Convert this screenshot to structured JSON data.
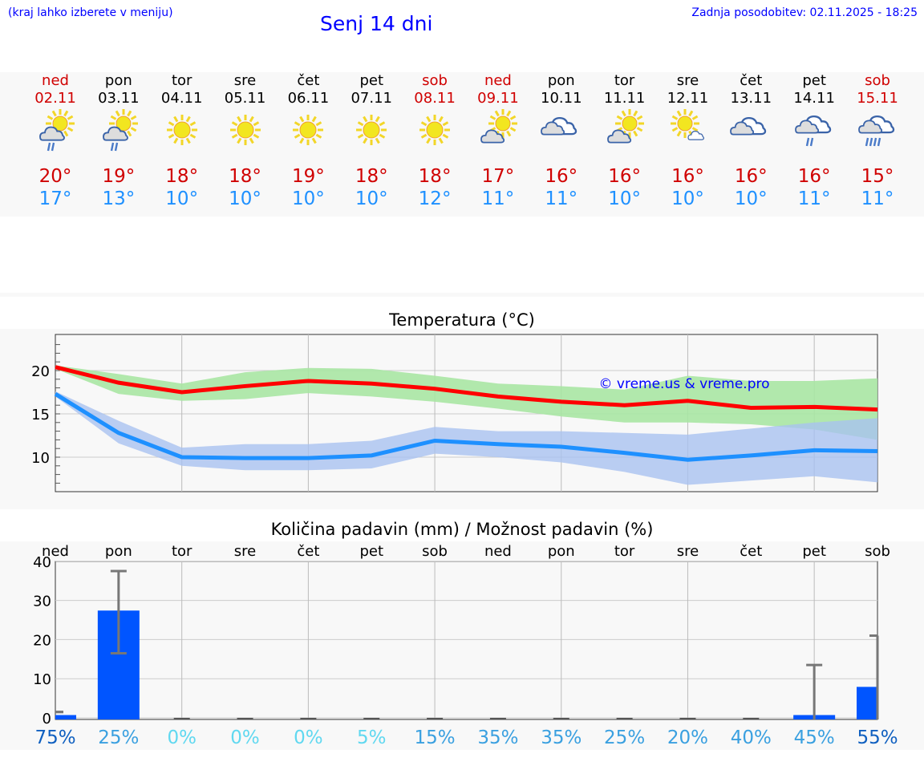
{
  "header": {
    "hint": "(kraj lahko izberete v meniju)",
    "title": "Senj 14 dni",
    "updated": "Zadnja posodobitev: 02.11.2025 - 18:25"
  },
  "days": [
    {
      "name": "ned",
      "date": "02.11",
      "hi": "20°",
      "lo": "17°",
      "weekend": true,
      "icon": "sun-cloud-rain"
    },
    {
      "name": "pon",
      "date": "03.11",
      "hi": "19°",
      "lo": "13°",
      "weekend": false,
      "icon": "sun-cloud-rain"
    },
    {
      "name": "tor",
      "date": "04.11",
      "hi": "18°",
      "lo": "10°",
      "weekend": false,
      "icon": "sun"
    },
    {
      "name": "sre",
      "date": "05.11",
      "hi": "18°",
      "lo": "10°",
      "weekend": false,
      "icon": "sun"
    },
    {
      "name": "čet",
      "date": "06.11",
      "hi": "19°",
      "lo": "10°",
      "weekend": false,
      "icon": "sun"
    },
    {
      "name": "pet",
      "date": "07.11",
      "hi": "18°",
      "lo": "10°",
      "weekend": false,
      "icon": "sun"
    },
    {
      "name": "sob",
      "date": "08.11",
      "hi": "18°",
      "lo": "12°",
      "weekend": true,
      "icon": "sun"
    },
    {
      "name": "ned",
      "date": "09.11",
      "hi": "17°",
      "lo": "11°",
      "weekend": true,
      "icon": "sun-cloud"
    },
    {
      "name": "pon",
      "date": "10.11",
      "hi": "16°",
      "lo": "11°",
      "weekend": false,
      "icon": "cloud"
    },
    {
      "name": "tor",
      "date": "11.11",
      "hi": "16°",
      "lo": "10°",
      "weekend": false,
      "icon": "sun-cloud"
    },
    {
      "name": "sre",
      "date": "12.11",
      "hi": "16°",
      "lo": "10°",
      "weekend": false,
      "icon": "sun-small-cloud"
    },
    {
      "name": "čet",
      "date": "13.11",
      "hi": "16°",
      "lo": "10°",
      "weekend": false,
      "icon": "cloud"
    },
    {
      "name": "pet",
      "date": "14.11",
      "hi": "16°",
      "lo": "11°",
      "weekend": false,
      "icon": "cloud-rain"
    },
    {
      "name": "sob",
      "date": "15.11",
      "hi": "15°",
      "lo": "11°",
      "weekend": true,
      "icon": "cloud-heavy-rain"
    }
  ],
  "colors": {
    "max": "#ff0000",
    "min": "#1e90ff",
    "maxband": "#a8e6a3",
    "minband": "#a9c2f0",
    "bar": "#0055ff"
  },
  "chart_data": [
    {
      "type": "line",
      "title": "Temperatura (°C)",
      "watermark": "© vreme.us & vreme.pro",
      "ylim": [
        6,
        24
      ],
      "yticks": [
        10,
        15,
        20
      ],
      "grid": true,
      "categories": [
        "ned",
        "pon",
        "tor",
        "sre",
        "čet",
        "pet",
        "sob",
        "ned",
        "pon",
        "tor",
        "sre",
        "čet",
        "pet",
        "sob"
      ],
      "series": [
        {
          "name": "max",
          "values": [
            20.4,
            18.6,
            17.5,
            18.2,
            18.8,
            18.5,
            17.9,
            17.0,
            16.4,
            16.0,
            16.5,
            15.7,
            15.8,
            15.5
          ],
          "band_low": [
            20.2,
            17.3,
            16.5,
            16.7,
            17.4,
            17.0,
            16.4,
            15.6,
            14.7,
            14.0,
            14.0,
            13.8,
            13.2,
            12.0
          ],
          "band_high": [
            20.6,
            19.6,
            18.5,
            19.8,
            20.3,
            20.2,
            19.4,
            18.5,
            18.2,
            17.8,
            19.4,
            18.8,
            18.8,
            19.1
          ]
        },
        {
          "name": "min",
          "values": [
            17.3,
            12.8,
            10.0,
            9.9,
            9.9,
            10.2,
            11.9,
            11.5,
            11.2,
            10.5,
            9.7,
            10.2,
            10.8,
            10.7
          ],
          "band_low": [
            17.0,
            11.6,
            9.0,
            8.5,
            8.5,
            8.7,
            10.4,
            10.0,
            9.4,
            8.3,
            6.8,
            7.3,
            7.8,
            7.1
          ],
          "band_high": [
            17.6,
            14.2,
            11.1,
            11.5,
            11.5,
            11.9,
            13.5,
            13.0,
            13.0,
            12.8,
            12.6,
            13.3,
            14.0,
            14.5
          ]
        }
      ]
    },
    {
      "type": "bar",
      "title": "Količina padavin (mm) / Možnost padavin (%)",
      "ylim": [
        0,
        40
      ],
      "yticks": [
        0,
        10,
        20,
        30,
        40
      ],
      "grid": true,
      "categories": [
        "ned",
        "pon",
        "tor",
        "sre",
        "čet",
        "pet",
        "sob",
        "ned",
        "pon",
        "tor",
        "sre",
        "čet",
        "pet",
        "sob"
      ],
      "values": [
        0.3,
        27,
        0,
        0,
        0,
        0,
        0,
        0,
        0,
        0,
        0,
        0,
        0.3,
        7.5
      ],
      "error_low": [
        1.5,
        16.5,
        0,
        0,
        0,
        0,
        0,
        0,
        0,
        0,
        0,
        0,
        0,
        0
      ],
      "error_high": [
        1.5,
        37.5,
        0,
        0,
        0,
        0,
        0,
        0,
        0,
        0,
        0,
        0,
        13.5,
        21
      ],
      "probability": [
        "75%",
        "25%",
        "0%",
        "0%",
        "0%",
        "5%",
        "15%",
        "35%",
        "35%",
        "25%",
        "20%",
        "40%",
        "45%",
        "55%"
      ]
    }
  ]
}
